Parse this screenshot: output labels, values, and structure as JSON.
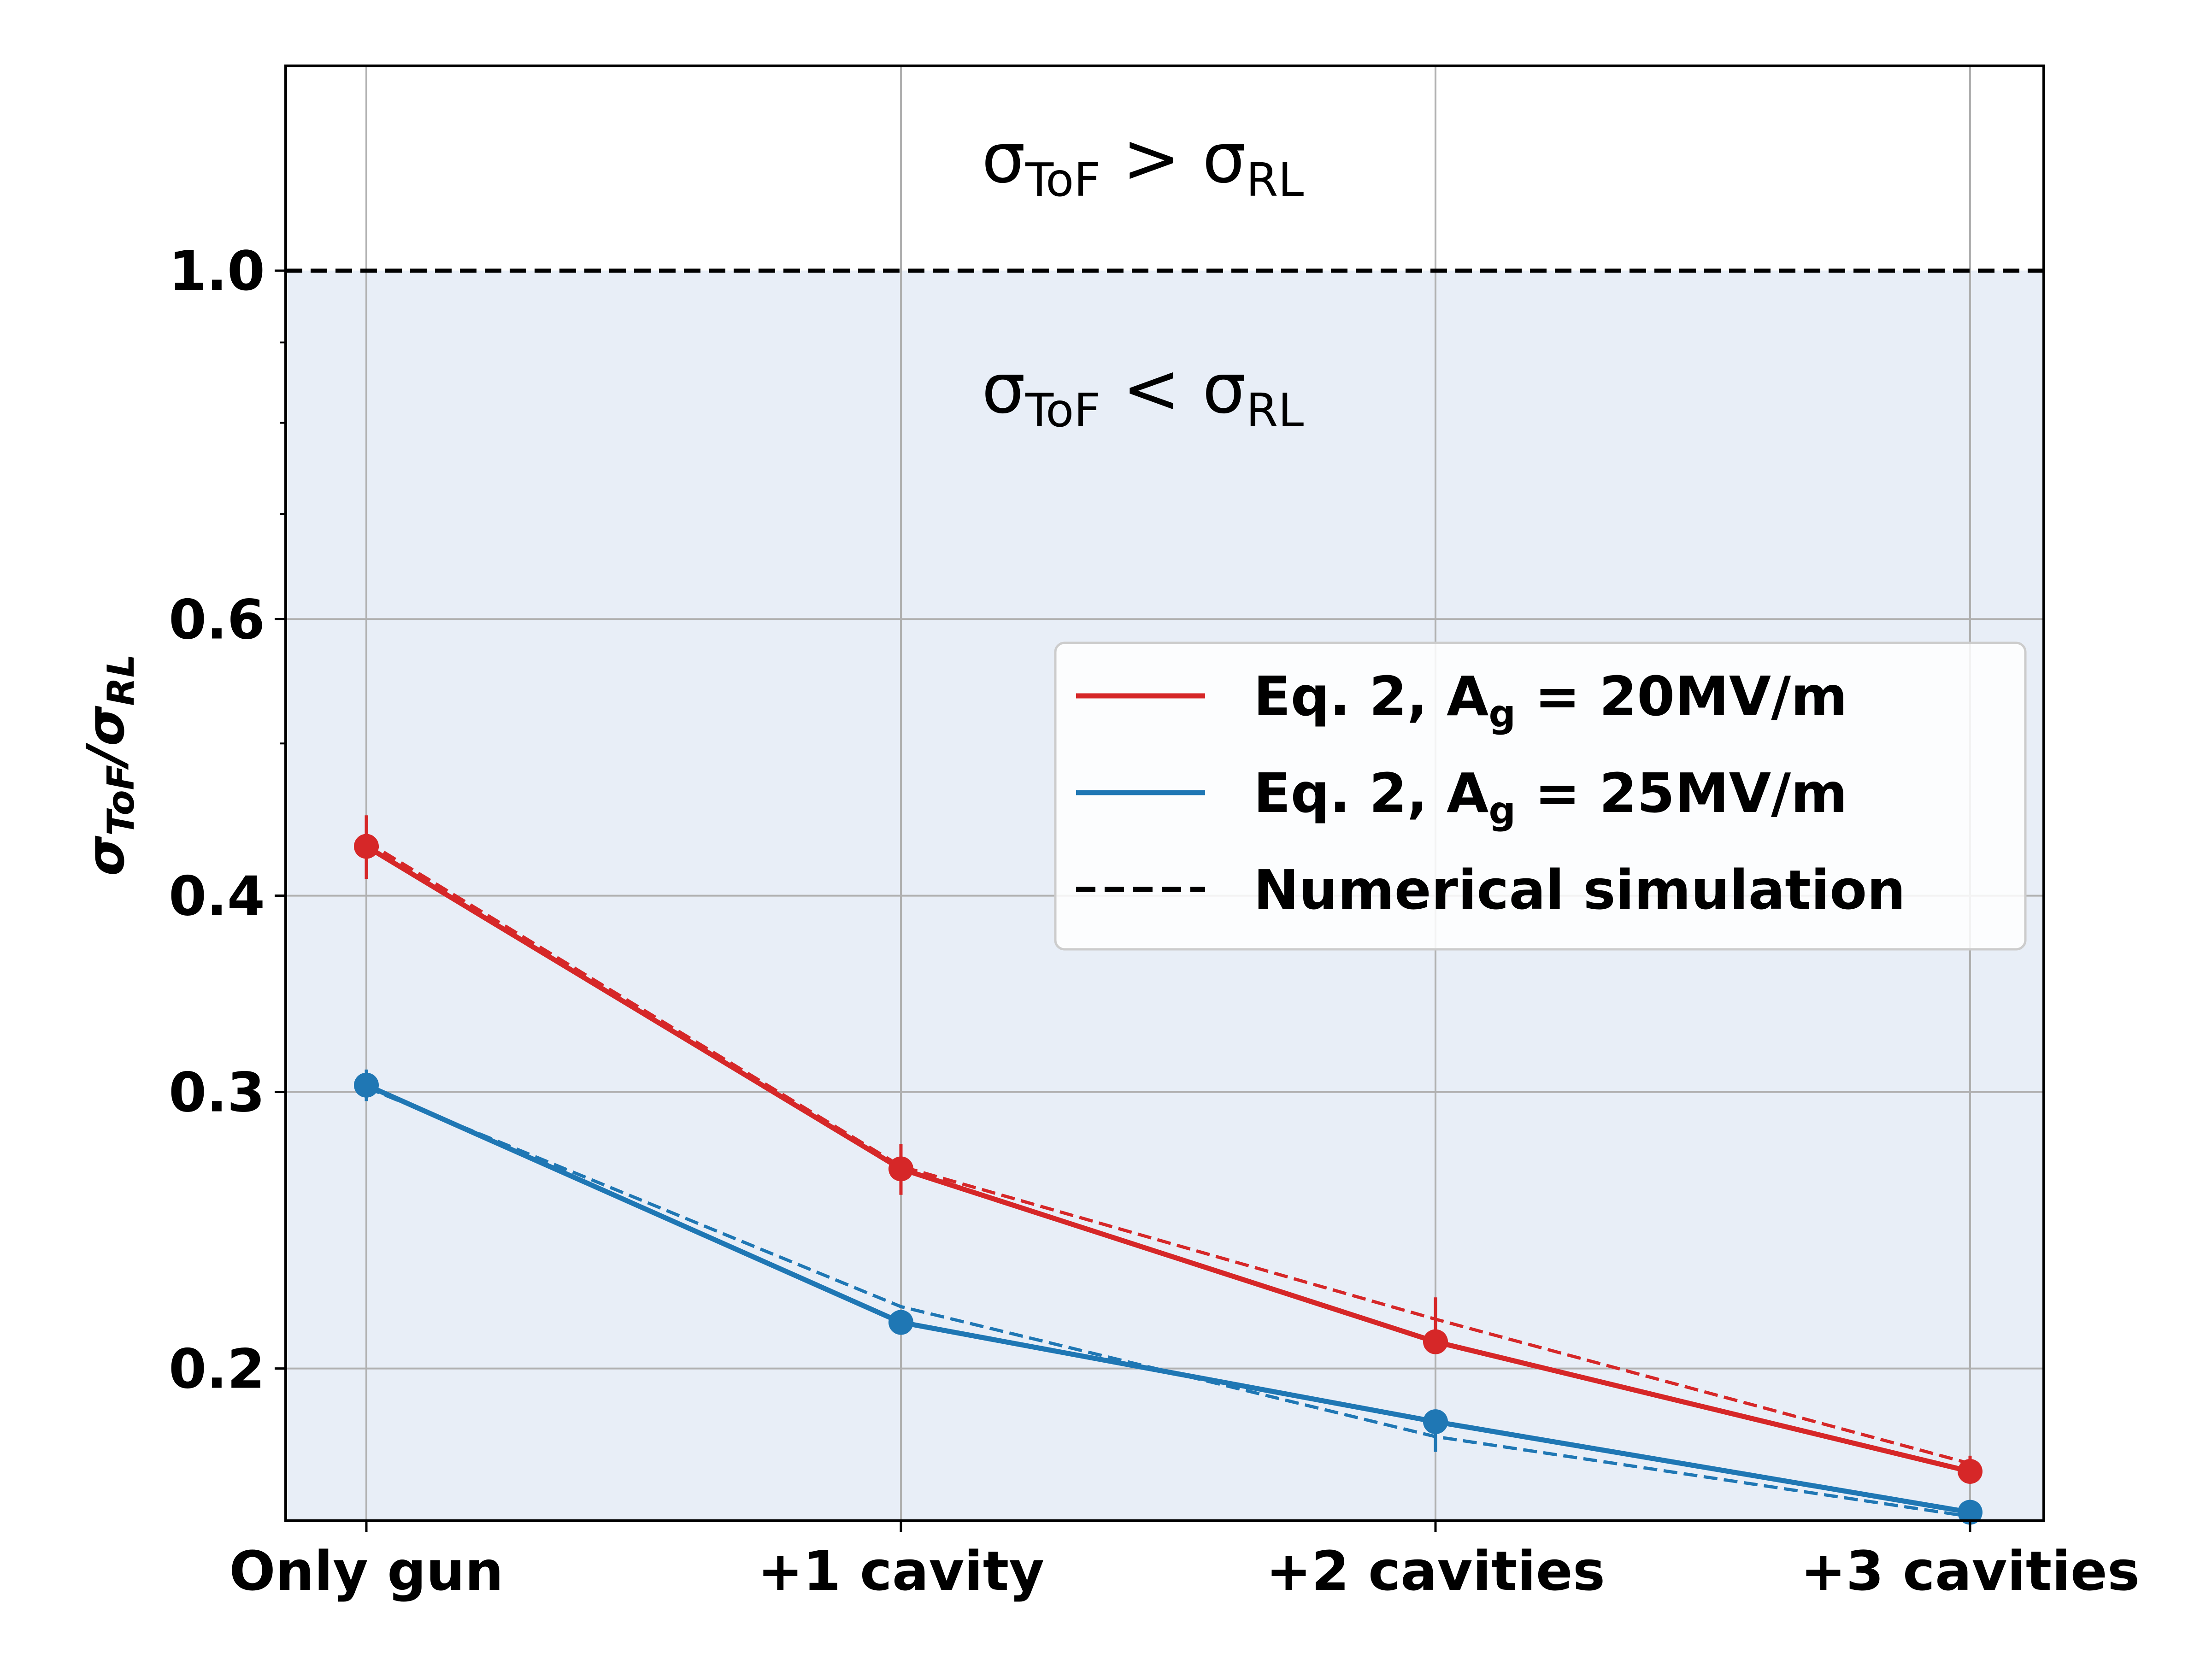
{
  "chart_data": {
    "type": "line",
    "y_scale": "log",
    "ylim": [
      0.16,
      1.35
    ],
    "categories": [
      "Only gun",
      "+1 cavity",
      "+2 cavities",
      "+3 cavities"
    ],
    "yticks": [
      {
        "value": 0.2,
        "label": "0.2"
      },
      {
        "value": 0.3,
        "label": "0.3"
      },
      {
        "value": 0.4,
        "label": "0.4"
      },
      {
        "value": 0.6,
        "label": "0.6"
      },
      {
        "value": 1.0,
        "label": "1.0"
      }
    ],
    "minor_yticks": [
      0.5,
      0.7,
      0.8,
      0.9
    ],
    "ylabel": {
      "main": "σ",
      "sub": "ToF",
      "slash": "/",
      "main2": "σ",
      "sub2": "RL"
    },
    "threshold": {
      "value": 1.0,
      "style": "dashed",
      "color": "#000000"
    },
    "region_below_color": "#e8eef7",
    "grid": true,
    "legend_position": "center-right",
    "annotations": {
      "above": {
        "sym": "σ",
        "sub": "ToF",
        "op": " > ",
        "sym2": "σ",
        "sub2": "RL"
      },
      "below": {
        "sym": "σ",
        "sub": "ToF",
        "op": " < ",
        "sym2": "σ",
        "sub2": "RL"
      }
    },
    "series": [
      {
        "name": "Eq. 2, A_g = 20MV/m",
        "legend": {
          "pre": "Eq. 2, A",
          "sub": "g",
          "post": " = 20MV/m"
        },
        "color": "#d62728",
        "style": "solid",
        "markers": true,
        "values": [
          0.43,
          0.268,
          0.208,
          0.172
        ],
        "errors": [
          0.02,
          0.01,
          0.0,
          0.0
        ]
      },
      {
        "name": "Eq. 2, A_g = 25MV/m",
        "legend": {
          "pre": "Eq. 2, A",
          "sub": "g",
          "post": " = 25MV/m"
        },
        "color": "#1f77b4",
        "style": "solid",
        "markers": true,
        "values": [
          0.303,
          0.214,
          0.185,
          0.162
        ],
        "errors": [
          0.007,
          0.0,
          0.0,
          0.0
        ]
      },
      {
        "name": "Numerical simulation (20MV/m)",
        "color": "#d62728",
        "style": "dashed",
        "markers": false,
        "values": [
          0.433,
          0.269,
          0.215,
          0.174
        ],
        "errors": [
          0.0,
          0.0,
          0.007,
          0.002
        ]
      },
      {
        "name": "Numerical simulation (25MV/m)",
        "color": "#1f77b4",
        "style": "dashed",
        "markers": false,
        "values": [
          0.302,
          0.219,
          0.181,
          0.161
        ],
        "errors": [
          0.005,
          0.0,
          0.004,
          0.0
        ]
      }
    ],
    "legend": [
      {
        "series": 0,
        "color": "#d62728",
        "style": "solid"
      },
      {
        "series": 1,
        "color": "#1f77b4",
        "style": "solid"
      },
      {
        "label": "Numerical simulation",
        "color": "#000000",
        "style": "dashed"
      }
    ]
  }
}
